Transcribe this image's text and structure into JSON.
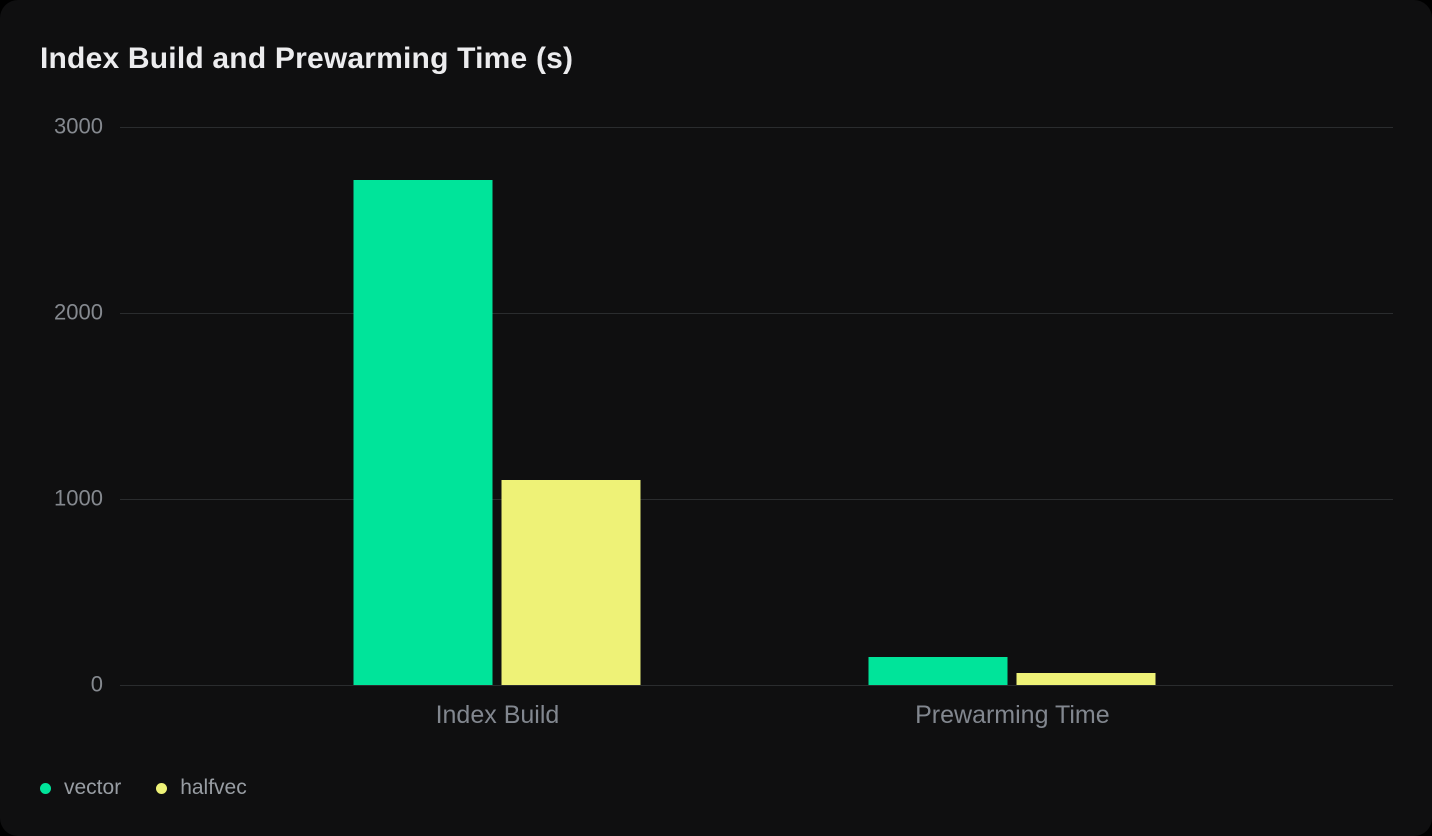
{
  "chart_data": {
    "type": "bar",
    "title": "Index Build and Prewarming Time (s)",
    "categories": [
      "Index Build",
      "Prewarming Time"
    ],
    "series": [
      {
        "name": "vector",
        "color": "#00e49a",
        "values": [
          2715,
          150
        ]
      },
      {
        "name": "halfvec",
        "color": "#eef277",
        "values": [
          1100,
          65
        ]
      }
    ],
    "ylim": [
      0,
      3000
    ],
    "yticks": [
      0,
      1000,
      2000,
      3000
    ],
    "unit": "s",
    "grid": true,
    "legend_position": "bottom-left"
  },
  "theme": {
    "page_background": "#000000",
    "card_background": "#0f0f10",
    "gridline_color": "#2a2c2e",
    "axis_text_color": "#85898f",
    "category_text_color": "#82878f",
    "legend_text_color": "#989da3",
    "title_text_color": "#ececee"
  }
}
